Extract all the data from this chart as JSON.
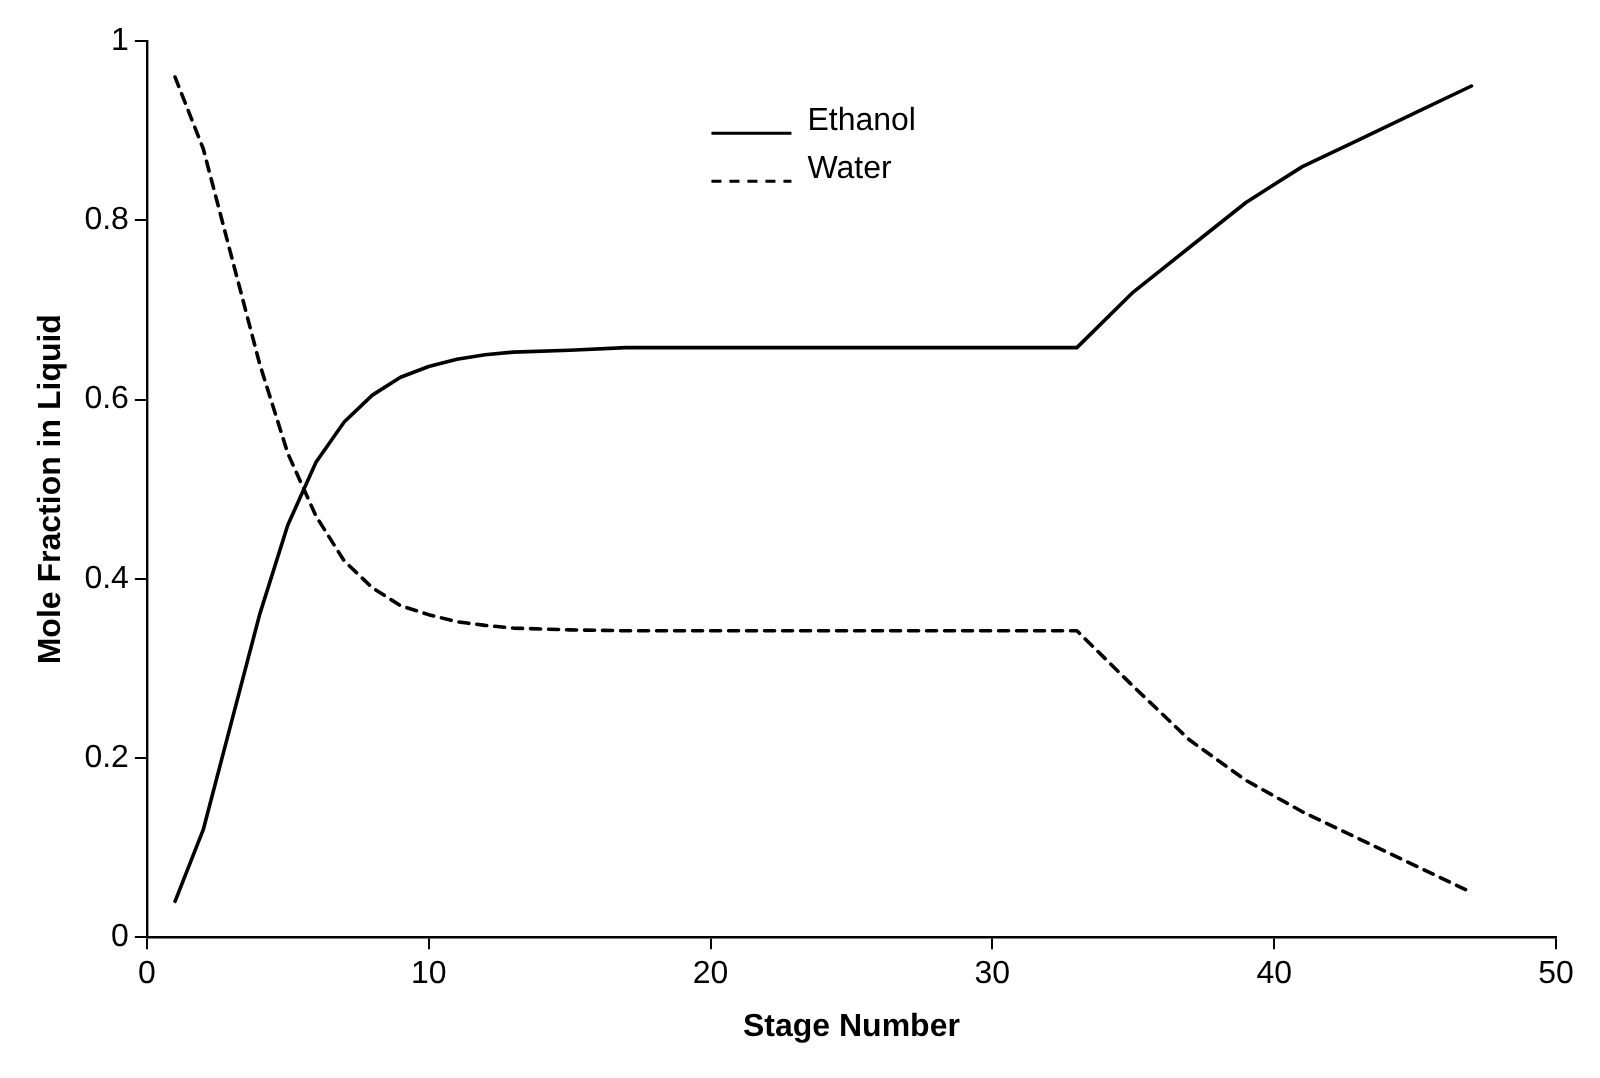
{
  "chart_data": {
    "type": "line",
    "xlabel": "Stage Number",
    "ylabel": "Mole Fraction in Liquid",
    "x": [
      1,
      2,
      3,
      4,
      5,
      6,
      7,
      8,
      9,
      10,
      11,
      12,
      13,
      15,
      17,
      20,
      25,
      30,
      33,
      35,
      37,
      39,
      41,
      43,
      45,
      47
    ],
    "series": [
      {
        "name": "Ethanol",
        "color": "#000000",
        "line_style": "solid",
        "values": [
          0.04,
          0.12,
          0.24,
          0.36,
          0.46,
          0.53,
          0.575,
          0.605,
          0.625,
          0.637,
          0.645,
          0.65,
          0.653,
          0.655,
          0.658,
          0.658,
          0.658,
          0.658,
          0.658,
          0.72,
          0.77,
          0.82,
          0.86,
          0.89,
          0.92,
          0.95
        ]
      },
      {
        "name": "Water",
        "color": "#000000",
        "line_style": "dashed",
        "values": [
          0.96,
          0.88,
          0.76,
          0.64,
          0.54,
          0.47,
          0.42,
          0.39,
          0.37,
          0.36,
          0.352,
          0.348,
          0.345,
          0.343,
          0.342,
          0.342,
          0.342,
          0.342,
          0.342,
          0.28,
          0.22,
          0.175,
          0.14,
          0.11,
          0.08,
          0.05
        ]
      }
    ],
    "xlim": [
      0,
      50
    ],
    "xticks": [
      0,
      10,
      20,
      30,
      40,
      50
    ],
    "ylim": [
      0,
      1
    ],
    "yticks": [
      0,
      0.2,
      0.4,
      0.6,
      0.8,
      1
    ],
    "grid": false,
    "legend": "top",
    "marker": "none"
  }
}
